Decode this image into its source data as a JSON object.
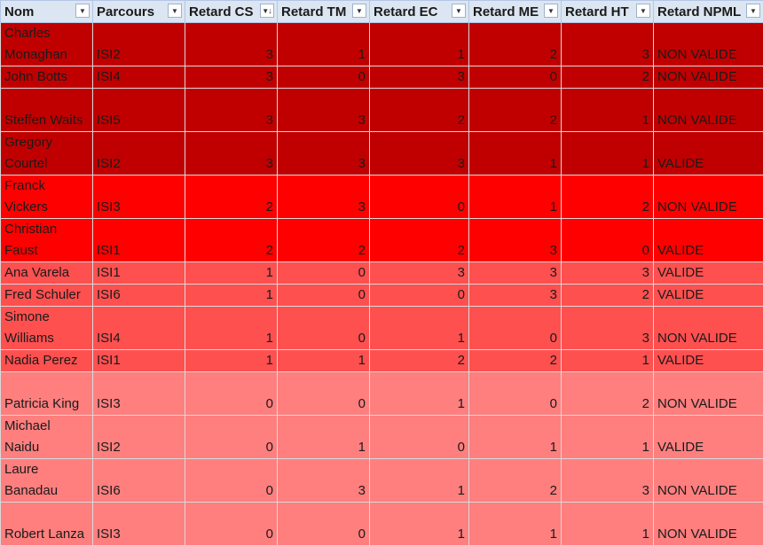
{
  "columns": [
    {
      "label": "Nom"
    },
    {
      "label": "Parcours"
    },
    {
      "label": "Retard CS"
    },
    {
      "label": "Retard TM"
    },
    {
      "label": "Retard EC"
    },
    {
      "label": "Retard ME"
    },
    {
      "label": "Retard HT"
    },
    {
      "label": "Retard NPML"
    }
  ],
  "rows": [
    {
      "nom": "Charles Monaghan",
      "parcours": "ISI2",
      "cs": "3",
      "tm": "1",
      "ec": "1",
      "me": "2",
      "ht": "3",
      "npml": "NON VALIDE",
      "color": "#c00000"
    },
    {
      "nom": "John Botts",
      "parcours": "ISI4",
      "cs": "3",
      "tm": "0",
      "ec": "3",
      "me": "0",
      "ht": "2",
      "npml": "NON VALIDE",
      "color": "#c00000"
    },
    {
      "nom": "Steffen Waits",
      "parcours": "ISI5",
      "cs": "3",
      "tm": "3",
      "ec": "2",
      "me": "2",
      "ht": "1",
      "npml": "NON VALIDE",
      "color": "#c00000"
    },
    {
      "nom": "Gregory Courtel",
      "parcours": "ISI2",
      "cs": "3",
      "tm": "3",
      "ec": "3",
      "me": "1",
      "ht": "1",
      "npml": "VALIDE",
      "color": "#c00000"
    },
    {
      "nom": "Franck Vickers",
      "parcours": "ISI3",
      "cs": "2",
      "tm": "3",
      "ec": "0",
      "me": "1",
      "ht": "2",
      "npml": "NON VALIDE",
      "color": "#ff0000"
    },
    {
      "nom": "Christian Faust",
      "parcours": "ISI1",
      "cs": "2",
      "tm": "2",
      "ec": "2",
      "me": "3",
      "ht": "0",
      "npml": "VALIDE",
      "color": "#ff0000"
    },
    {
      "nom": "Ana Varela",
      "parcours": "ISI1",
      "cs": "1",
      "tm": "0",
      "ec": "3",
      "me": "3",
      "ht": "3",
      "npml": "VALIDE",
      "color": "#ff5050"
    },
    {
      "nom": "Fred Schuler",
      "parcours": "ISI6",
      "cs": "1",
      "tm": "0",
      "ec": "0",
      "me": "3",
      "ht": "2",
      "npml": "VALIDE",
      "color": "#ff5050"
    },
    {
      "nom": "Simone Williams",
      "parcours": "ISI4",
      "cs": "1",
      "tm": "0",
      "ec": "1",
      "me": "0",
      "ht": "3",
      "npml": "NON VALIDE",
      "color": "#ff5050"
    },
    {
      "nom": "Nadia Perez",
      "parcours": "ISI1",
      "cs": "1",
      "tm": "1",
      "ec": "2",
      "me": "2",
      "ht": "1",
      "npml": "VALIDE",
      "color": "#ff5050"
    },
    {
      "nom": "Patricia King",
      "parcours": "ISI3",
      "cs": "0",
      "tm": "0",
      "ec": "1",
      "me": "0",
      "ht": "2",
      "npml": "NON VALIDE",
      "color": "#ff7f7f"
    },
    {
      "nom": "Michael Naidu",
      "parcours": "ISI2",
      "cs": "0",
      "tm": "1",
      "ec": "0",
      "me": "1",
      "ht": "1",
      "npml": "VALIDE",
      "color": "#ff7f7f"
    },
    {
      "nom": "Laure Banadau",
      "parcours": "ISI6",
      "cs": "0",
      "tm": "3",
      "ec": "1",
      "me": "2",
      "ht": "3",
      "npml": "NON VALIDE",
      "color": "#ff7f7f"
    },
    {
      "nom": "Robert Lanza",
      "parcours": "ISI3",
      "cs": "0",
      "tm": "0",
      "ec": "1",
      "me": "1",
      "ht": "1",
      "npml": "NON VALIDE",
      "color": "#ff7f7f"
    }
  ]
}
